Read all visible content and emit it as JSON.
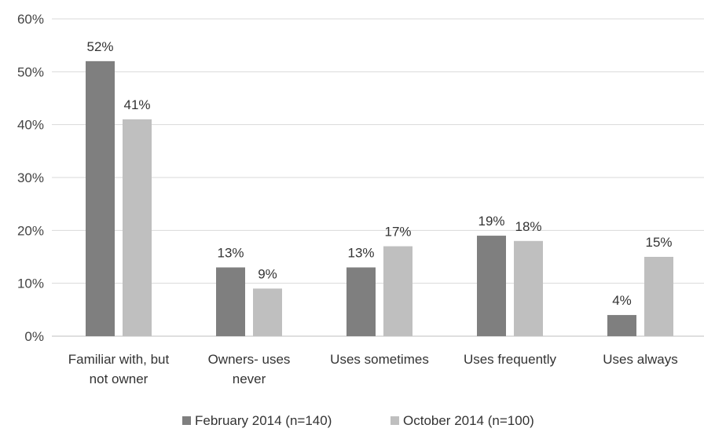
{
  "chart_data": {
    "type": "bar",
    "categories": [
      [
        "Familiar with, but",
        "not owner"
      ],
      [
        "Owners- uses",
        "never"
      ],
      [
        "Uses sometimes"
      ],
      [
        "Uses frequently"
      ],
      [
        "Uses always"
      ]
    ],
    "series": [
      {
        "name": "February 2014 (n=140)",
        "values": [
          52,
          13,
          13,
          19,
          4
        ],
        "color": "#7f7f7f"
      },
      {
        "name": "October 2014 (n=100)",
        "values": [
          41,
          9,
          17,
          18,
          15
        ],
        "color": "#bfbfbf"
      }
    ],
    "data_labels": [
      [
        "52%",
        "13%",
        "13%",
        "19%",
        "4%"
      ],
      [
        "41%",
        "9%",
        "17%",
        "18%",
        "15%"
      ]
    ],
    "y_ticks": [
      "0%",
      "10%",
      "20%",
      "30%",
      "40%",
      "50%",
      "60%"
    ],
    "ylim": [
      0,
      60
    ],
    "grid": true,
    "legend_position": "bottom"
  }
}
